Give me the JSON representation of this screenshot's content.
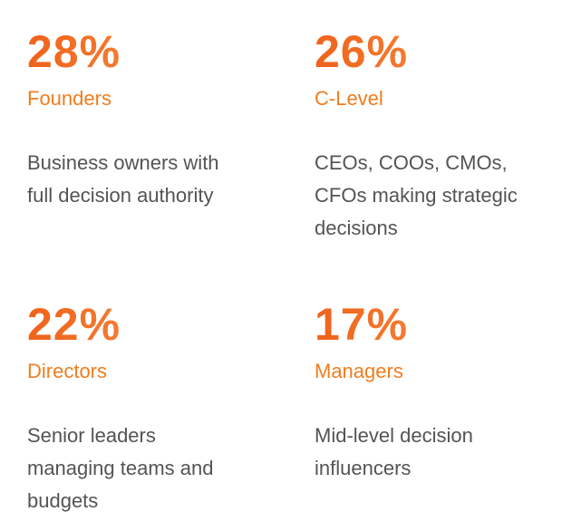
{
  "stats": [
    {
      "value": "28%",
      "label": "Founders",
      "description": [
        "Business owners with",
        "full decision authority"
      ]
    },
    {
      "value": "26%",
      "label": "C-Level",
      "description": [
        "CEOs, COOs, CMOs,",
        "CFOs making strategic",
        "decisions"
      ]
    },
    {
      "value": "22%",
      "label": "Directors",
      "description": [
        "Senior leaders",
        "managing teams and",
        "budgets"
      ]
    },
    {
      "value": "17%",
      "label": "Managers",
      "description": [
        "Mid-level decision",
        "influencers"
      ]
    }
  ]
}
